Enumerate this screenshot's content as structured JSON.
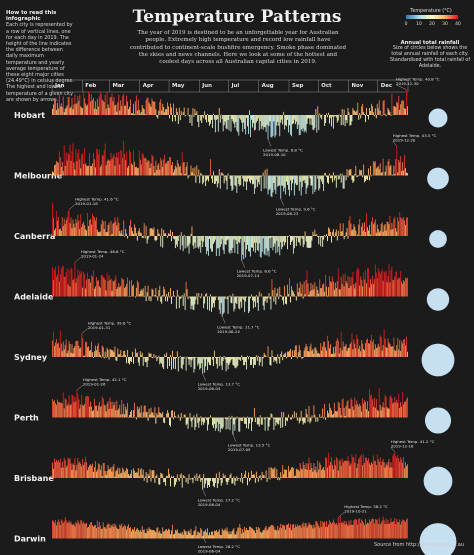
{
  "title": "Temperature Patterns",
  "intro": "The year of 2019 is destined to be an unforgettable year for Australian people. Extremely high temperature and record low rainfall have contributed to continent-scale bushfire emergency. Smoke phase dominated the skies and news channels. Here we look at some of the hottest and coolest days across all Australian capital cities in 2019.",
  "howto": {
    "heading": "How to read this infographic",
    "body": "Each city is represented by a row of vertical lines, one for each day in 2019. The height of the line indicates the difference between daily maximum temperature and yearly average temperature of these eight major cities (24.49°C) in celsius degree. The highest and lowest temperature of a given city are shown by arrows."
  },
  "legend": {
    "title": "Temperature (°C)",
    "ticks": [
      "0",
      "10",
      "20",
      "30",
      "40"
    ],
    "colors": [
      "#2c7bb6",
      "#abd9e9",
      "#ffffbf",
      "#fdae61",
      "#d7191c"
    ]
  },
  "rainfall_note": {
    "heading": "Annual total rainfall",
    "body": "Size of circles below shows the total annual rainfall of each city. Standardised with total rainfall of Adelaide."
  },
  "source": "Source from http://www.bom.gov.au",
  "colors": {
    "background": "#1b1b1b",
    "rain_circle": "#c6dff1",
    "hot": "#d7301f",
    "cold": "#6fa8cf",
    "neutral": "#d9cfc0"
  },
  "chart_data": {
    "type": "bar",
    "x_label_months": [
      "Jan",
      "Feb",
      "Mar",
      "Apr",
      "May",
      "Jun",
      "Jul",
      "Aug",
      "Sep",
      "Oct",
      "Nov",
      "Dec"
    ],
    "baseline_temp_c": 24.49,
    "rain_scale_ref": "Adelaide",
    "cities": [
      {
        "name": "Hobart",
        "rain_ratio": 0.71,
        "highest": {
          "label": "Highest Temp. 40.8 °C",
          "date": "2019-12-30",
          "value": 40.8,
          "day": 363
        },
        "lowest": {
          "label": "Lowest Temp. 8.8 °C",
          "date": "2019-08-10",
          "value": 8.8,
          "day": 221
        }
      },
      {
        "name": "Melbourne",
        "rain_ratio": 0.94,
        "highest": {
          "label": "Highest Temp. 43.5 °C",
          "date": "2019-12-20",
          "value": 43.5,
          "day": 353
        },
        "lowest": {
          "label": "Lowest Temp. 9.6 °C",
          "date": "2019-08-23",
          "value": 9.6,
          "day": 234
        }
      },
      {
        "name": "Canberra",
        "rain_ratio": 0.62,
        "highest": {
          "label": "Highest Temp. 41.6 °C",
          "date": "2019-01-18",
          "value": 41.6,
          "day": 17
        },
        "lowest": {
          "label": "Lowest Temp. 8.6 °C",
          "date": "2019-07-14",
          "value": 8.6,
          "day": 194
        }
      },
      {
        "name": "Adelaide",
        "rain_ratio": 1.0,
        "highest": {
          "label": "Highest Temp. 46.6 °C",
          "date": "2019-01-24",
          "value": 46.6,
          "day": 23
        },
        "lowest": {
          "label": "Lowest Temp. 11.7 °C",
          "date": "2019-06-24",
          "value": 11.7,
          "day": 174
        }
      },
      {
        "name": "Sydney",
        "rain_ratio": 2.15,
        "highest": {
          "label": "Highest Temp. 39.6 °C",
          "date": "2019-01-31",
          "value": 39.6,
          "day": 30
        },
        "lowest": {
          "label": "Lowest Temp. 13.7 °C",
          "date": "2019-06-04",
          "value": 13.7,
          "day": 154
        }
      },
      {
        "name": "Perth",
        "rain_ratio": 1.36,
        "highest": {
          "label": "Highest Temp. 42.1 °C",
          "date": "2019-01-26",
          "value": 42.1,
          "day": 25
        },
        "lowest": {
          "label": "Lowest Temp. 13.5 °C",
          "date": "2019-07-05",
          "value": 13.5,
          "day": 185
        }
      },
      {
        "name": "Brisbane",
        "rain_ratio": 1.65,
        "highest": {
          "label": "Highest Temp. 41.2 °C",
          "date": "2019-12-18",
          "value": 41.2,
          "day": 351
        },
        "lowest": {
          "label": "Lowest Temp. 17.2 °C",
          "date": "2019-06-04",
          "value": 17.2,
          "day": 154
        }
      },
      {
        "name": "Darwin",
        "rain_ratio": 2.7,
        "highest": {
          "label": "Highest Temp. 38.2 °C",
          "date": "2019-10-21",
          "value": 38.2,
          "day": 293
        },
        "lowest": {
          "label": "Lowest Temp. 26.2 °C",
          "date": "2019-06-04",
          "value": 26.2,
          "day": 154
        }
      }
    ]
  }
}
